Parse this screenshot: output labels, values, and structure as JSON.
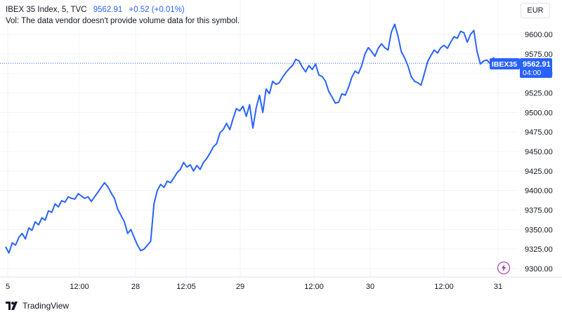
{
  "legend": {
    "symbol": "IBEX 35 Index, 5, TVC",
    "last": "9562.91",
    "change": "+0.52 (+0.01%)",
    "volume_note": "Vol: The data vendor doesn't provide volume data for this symbol."
  },
  "currency": "EUR",
  "price_badge": {
    "ticker": "IBEX35",
    "price": "9562.91",
    "countdown": "04:00"
  },
  "footer": {
    "brand": "TradingView"
  },
  "colors": {
    "line": "#2962ff",
    "grid": "#f0f3fa",
    "text": "#131722",
    "accent": "#2962ff"
  },
  "chart_data": {
    "type": "line",
    "series": [
      {
        "name": "IBEX 35 Index",
        "values": [
          9328,
          9320,
          9333,
          9330,
          9340,
          9345,
          9338,
          9352,
          9349,
          9360,
          9356,
          9365,
          9362,
          9374,
          9372,
          9383,
          9379,
          9387,
          9385,
          9392,
          9390,
          9389,
          9396,
          9393,
          9390,
          9392,
          9386,
          9392,
          9398,
          9404,
          9410,
          9405,
          9397,
          9390,
          9376,
          9368,
          9360,
          9345,
          9350,
          9340,
          9330,
          9323,
          9325,
          9330,
          9335,
          9383,
          9400,
          9408,
          9404,
          9412,
          9410,
          9416,
          9423,
          9427,
          9436,
          9430,
          9433,
          9425,
          9432,
          9427,
          9436,
          9441,
          9448,
          9456,
          9460,
          9474,
          9478,
          9486,
          9478,
          9492,
          9505,
          9502,
          9508,
          9495,
          9510,
          9480,
          9506,
          9522,
          9500,
          9530,
          9524,
          9540,
          9536,
          9538,
          9545,
          9551,
          9556,
          9560,
          9568,
          9566,
          9558,
          9552,
          9560,
          9555,
          9562,
          9548,
          9546,
          9540,
          9527,
          9520,
          9512,
          9513,
          9524,
          9522,
          9532,
          9545,
          9553,
          9550,
          9560,
          9575,
          9583,
          9578,
          9572,
          9582,
          9588,
          9583,
          9580,
          9603,
          9613,
          9598,
          9578,
          9570,
          9560,
          9546,
          9540,
          9538,
          9535,
          9550,
          9565,
          9573,
          9580,
          9576,
          9583,
          9586,
          9582,
          9590,
          9597,
          9595,
          9604,
          9602,
          9590,
          9600,
          9605,
          9578,
          9562,
          9566,
          9567,
          9562,
          9570,
          9562,
          9562
        ]
      }
    ],
    "x_tick_labels": [
      "5",
      "12:00",
      "28",
      "12:05",
      "29",
      "12:00",
      "30",
      "12:00",
      "31"
    ],
    "y_tick_labels": [
      "9600.00",
      "9575.00",
      "9550.00",
      "9525.00",
      "9500.00",
      "9475.00",
      "9450.00",
      "9425.00",
      "9400.00",
      "9375.00",
      "9350.00",
      "9325.00",
      "9300.00"
    ],
    "ylim": [
      9300,
      9610
    ],
    "last_value": 9562.91,
    "grid": true
  }
}
